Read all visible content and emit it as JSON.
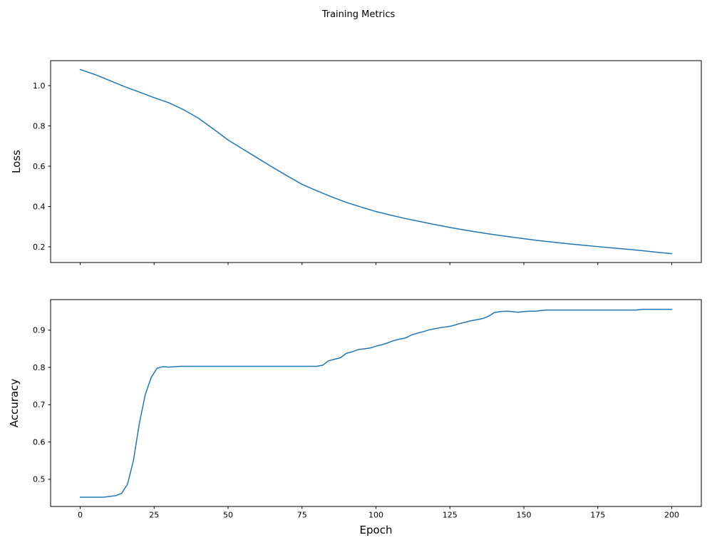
{
  "figure": {
    "title": "Training Metrics",
    "background_color": "#ffffff",
    "line_color": "#1f77b4"
  },
  "chart_data": [
    {
      "type": "line",
      "name": "loss",
      "title": "",
      "xlabel": "",
      "ylabel": "Loss",
      "grid": false,
      "legend": null,
      "line_color": "#1f77b4",
      "xlim": [
        -10,
        210
      ],
      "ylim": [
        0.122,
        1.124
      ],
      "xticks": [
        0,
        25,
        50,
        75,
        100,
        125,
        150,
        175,
        200
      ],
      "yticks": [
        0.2,
        0.4,
        0.6,
        0.8,
        1.0
      ],
      "x": [
        0,
        5,
        10,
        15,
        20,
        25,
        30,
        35,
        40,
        45,
        50,
        55,
        60,
        65,
        70,
        75,
        80,
        85,
        90,
        95,
        100,
        105,
        110,
        115,
        120,
        125,
        130,
        135,
        140,
        145,
        150,
        155,
        160,
        165,
        170,
        175,
        180,
        185,
        190,
        195,
        200
      ],
      "values": [
        1.08,
        1.055,
        1.025,
        0.995,
        0.968,
        0.94,
        0.915,
        0.88,
        0.838,
        0.785,
        0.73,
        0.685,
        0.64,
        0.595,
        0.552,
        0.51,
        0.478,
        0.448,
        0.42,
        0.397,
        0.375,
        0.357,
        0.34,
        0.325,
        0.31,
        0.296,
        0.283,
        0.271,
        0.26,
        0.25,
        0.24,
        0.231,
        0.223,
        0.215,
        0.208,
        0.201,
        0.194,
        0.188,
        0.181,
        0.173,
        0.166
      ]
    },
    {
      "type": "line",
      "name": "accuracy",
      "title": "",
      "xlabel": "Epoch",
      "ylabel": "Accuracy",
      "grid": false,
      "legend": null,
      "line_color": "#1f77b4",
      "xlim": [
        -10,
        210
      ],
      "ylim": [
        0.427,
        0.982
      ],
      "xticks": [
        0,
        25,
        50,
        75,
        100,
        125,
        150,
        175,
        200
      ],
      "yticks": [
        0.5,
        0.6,
        0.7,
        0.8,
        0.9
      ],
      "x": [
        0,
        2,
        4,
        6,
        8,
        10,
        12,
        14,
        16,
        18,
        20,
        22,
        24,
        26,
        28,
        30,
        32,
        34,
        36,
        38,
        40,
        42,
        44,
        46,
        48,
        50,
        52,
        54,
        56,
        58,
        60,
        62,
        64,
        66,
        68,
        70,
        72,
        74,
        76,
        78,
        80,
        82,
        84,
        86,
        88,
        90,
        92,
        94,
        96,
        98,
        100,
        102,
        104,
        106,
        108,
        110,
        112,
        114,
        116,
        118,
        120,
        122,
        124,
        126,
        128,
        130,
        132,
        134,
        136,
        138,
        140,
        142,
        144,
        146,
        148,
        150,
        152,
        154,
        156,
        158,
        160,
        162,
        164,
        166,
        168,
        170,
        172,
        174,
        176,
        178,
        180,
        182,
        184,
        186,
        188,
        190,
        192,
        194,
        196,
        198,
        200
      ],
      "values": [
        0.452,
        0.452,
        0.452,
        0.452,
        0.452,
        0.454,
        0.456,
        0.462,
        0.487,
        0.55,
        0.65,
        0.727,
        0.773,
        0.798,
        0.802,
        0.801,
        0.802,
        0.803,
        0.803,
        0.803,
        0.803,
        0.803,
        0.803,
        0.803,
        0.803,
        0.803,
        0.803,
        0.803,
        0.803,
        0.803,
        0.803,
        0.803,
        0.803,
        0.803,
        0.803,
        0.803,
        0.803,
        0.803,
        0.803,
        0.803,
        0.803,
        0.806,
        0.818,
        0.822,
        0.826,
        0.838,
        0.842,
        0.848,
        0.85,
        0.852,
        0.857,
        0.861,
        0.866,
        0.872,
        0.876,
        0.879,
        0.887,
        0.892,
        0.896,
        0.901,
        0.904,
        0.907,
        0.909,
        0.912,
        0.917,
        0.921,
        0.925,
        0.928,
        0.931,
        0.937,
        0.947,
        0.95,
        0.951,
        0.95,
        0.948,
        0.95,
        0.951,
        0.951,
        0.953,
        0.954,
        0.954,
        0.954,
        0.954,
        0.954,
        0.954,
        0.954,
        0.954,
        0.954,
        0.954,
        0.954,
        0.954,
        0.954,
        0.954,
        0.954,
        0.954,
        0.956,
        0.956,
        0.956,
        0.956,
        0.956,
        0.956
      ]
    }
  ]
}
